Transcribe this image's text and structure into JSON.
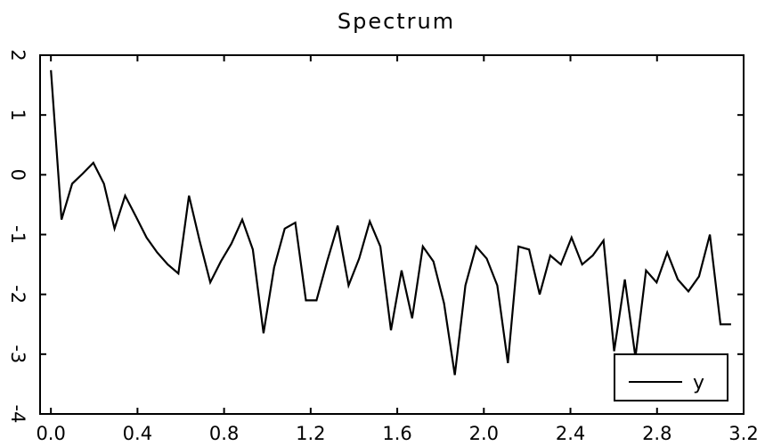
{
  "chart_data": {
    "type": "line",
    "title": "Spectrum",
    "xlabel": "",
    "ylabel": "",
    "xlim": [
      -0.05,
      3.2
    ],
    "ylim": [
      -4,
      2
    ],
    "xticks": [
      0.0,
      0.4,
      0.8,
      1.2,
      1.6,
      2.0,
      2.4,
      2.8,
      3.2
    ],
    "xtick_labels": [
      "0.0",
      "0.4",
      "0.8",
      "1.2",
      "1.6",
      "2.0",
      "2.4",
      "2.8",
      "3.2"
    ],
    "yticks": [
      2,
      1,
      0,
      -1,
      -2,
      -3,
      -4
    ],
    "ytick_labels": [
      "2",
      "1",
      "0",
      "-1",
      "-2",
      "-3",
      "-4"
    ],
    "grid": false,
    "legend_position": "bottom-right",
    "series": [
      {
        "name": "y",
        "color": "#000000",
        "x": [
          0.0,
          0.049,
          0.098,
          0.147,
          0.196,
          0.245,
          0.294,
          0.343,
          0.393,
          0.442,
          0.491,
          0.54,
          0.589,
          0.638,
          0.687,
          0.736,
          0.785,
          0.834,
          0.884,
          0.933,
          0.982,
          1.031,
          1.08,
          1.129,
          1.178,
          1.227,
          1.276,
          1.325,
          1.375,
          1.424,
          1.473,
          1.522,
          1.571,
          1.62,
          1.669,
          1.718,
          1.767,
          1.816,
          1.866,
          1.915,
          1.964,
          2.013,
          2.062,
          2.111,
          2.16,
          2.209,
          2.258,
          2.307,
          2.356,
          2.405,
          2.454,
          2.503,
          2.553,
          2.602,
          2.651,
          2.7,
          2.749,
          2.798,
          2.847,
          2.896,
          2.945,
          2.994,
          3.044,
          3.093,
          3.142
        ],
        "y": [
          1.75,
          -0.75,
          -0.15,
          0.02,
          0.2,
          -0.15,
          -0.9,
          -0.35,
          -0.7,
          -1.05,
          -1.3,
          -1.5,
          -1.65,
          -0.35,
          -1.1,
          -1.8,
          -1.45,
          -1.15,
          -0.75,
          -1.25,
          -2.65,
          -1.55,
          -0.9,
          -0.8,
          -2.1,
          -2.1,
          -1.45,
          -0.85,
          -1.85,
          -1.4,
          -0.78,
          -1.2,
          -2.6,
          -1.6,
          -2.4,
          -1.2,
          -1.45,
          -2.15,
          -3.35,
          -1.85,
          -1.2,
          -1.4,
          -1.85,
          -3.15,
          -1.2,
          -1.25,
          -2.0,
          -1.35,
          -1.5,
          -1.05,
          -1.5,
          -1.35,
          -1.1,
          -2.95,
          -1.75,
          -3.05,
          -1.6,
          -1.8,
          -1.3,
          -1.75,
          -1.95,
          -1.7,
          -1.0,
          -2.5,
          -2.5
        ]
      }
    ]
  }
}
